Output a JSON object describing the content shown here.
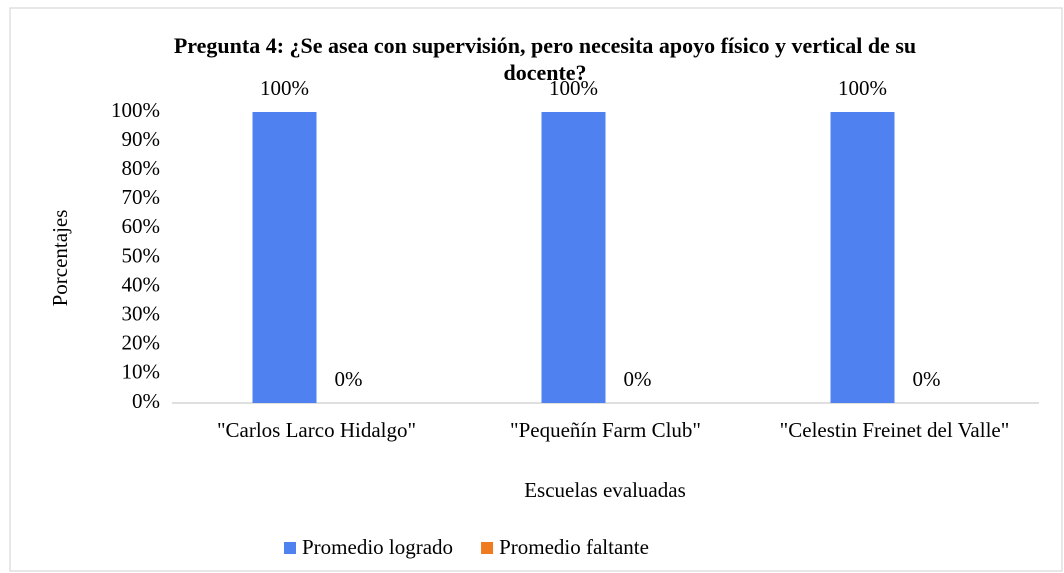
{
  "chart_data": {
    "type": "bar",
    "title": "Pregunta 4: ¿Se asea con supervisión, pero necesita apoyo físico y vertical de su docente?",
    "x_label": "Escuelas evaluadas",
    "y_label": "Porcentajes",
    "categories": [
      "\"Carlos Larco Hidalgo\"",
      "\"Pequeñín Farm Club\"",
      "\"Celestin Freinet del Valle\""
    ],
    "series": [
      {
        "name": "Promedio logrado",
        "color": "#4f81f0",
        "values": [
          100,
          100,
          100
        ],
        "value_labels": [
          "100%",
          "100%",
          "100%"
        ]
      },
      {
        "name": "Promedio faltante",
        "color": "#f07a1e",
        "values": [
          0,
          0,
          0
        ],
        "value_labels": [
          "0%",
          "0%",
          "0%"
        ]
      }
    ],
    "ylim": [
      0,
      100
    ],
    "yticks": [
      {
        "value": 0,
        "label": "0%"
      },
      {
        "value": 10,
        "label": "10%"
      },
      {
        "value": 20,
        "label": "20%"
      },
      {
        "value": 30,
        "label": "30%"
      },
      {
        "value": 40,
        "label": "40%"
      },
      {
        "value": 50,
        "label": "50%"
      },
      {
        "value": 60,
        "label": "60%"
      },
      {
        "value": 70,
        "label": "70%"
      },
      {
        "value": 80,
        "label": "80%"
      },
      {
        "value": 90,
        "label": "90%"
      },
      {
        "value": 100,
        "label": "100%"
      }
    ],
    "grid": false,
    "legend": "bottom"
  }
}
